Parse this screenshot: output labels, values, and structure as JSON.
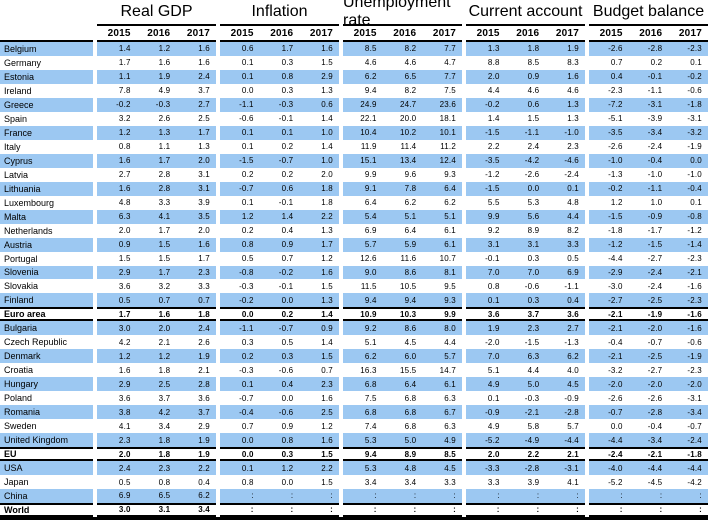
{
  "colors": {
    "row_highlight": "#9CC8F2",
    "rule": "#000000"
  },
  "table": {
    "groups": [
      {
        "label": "Real GDP"
      },
      {
        "label": "Inflation"
      },
      {
        "label": "Unemployment rate"
      },
      {
        "label": "Current account"
      },
      {
        "label": "Budget balance"
      }
    ],
    "years": [
      "2015",
      "2016",
      "2017"
    ],
    "rows": [
      {
        "name": "Belgium",
        "hl": true,
        "strong": false,
        "v": [
          [
            "1.4",
            "1.2",
            "1.6"
          ],
          [
            "0.6",
            "1.7",
            "1.6"
          ],
          [
            "8.5",
            "8.2",
            "7.7"
          ],
          [
            "1.3",
            "1.8",
            "1.9"
          ],
          [
            "-2.6",
            "-2.8",
            "-2.3"
          ]
        ]
      },
      {
        "name": "Germany",
        "hl": false,
        "strong": false,
        "v": [
          [
            "1.7",
            "1.6",
            "1.6"
          ],
          [
            "0.1",
            "0.3",
            "1.5"
          ],
          [
            "4.6",
            "4.6",
            "4.7"
          ],
          [
            "8.8",
            "8.5",
            "8.3"
          ],
          [
            "0.7",
            "0.2",
            "0.1"
          ]
        ]
      },
      {
        "name": "Estonia",
        "hl": true,
        "strong": false,
        "v": [
          [
            "1.1",
            "1.9",
            "2.4"
          ],
          [
            "0.1",
            "0.8",
            "2.9"
          ],
          [
            "6.2",
            "6.5",
            "7.7"
          ],
          [
            "2.0",
            "0.9",
            "1.6"
          ],
          [
            "0.4",
            "-0.1",
            "-0.2"
          ]
        ]
      },
      {
        "name": "Ireland",
        "hl": false,
        "strong": false,
        "v": [
          [
            "7.8",
            "4.9",
            "3.7"
          ],
          [
            "0.0",
            "0.3",
            "1.3"
          ],
          [
            "9.4",
            "8.2",
            "7.5"
          ],
          [
            "4.4",
            "4.6",
            "4.6"
          ],
          [
            "-2.3",
            "-1.1",
            "-0.6"
          ]
        ]
      },
      {
        "name": "Greece",
        "hl": true,
        "strong": false,
        "v": [
          [
            "-0.2",
            "-0.3",
            "2.7"
          ],
          [
            "-1.1",
            "-0.3",
            "0.6"
          ],
          [
            "24.9",
            "24.7",
            "23.6"
          ],
          [
            "-0.2",
            "0.6",
            "1.3"
          ],
          [
            "-7.2",
            "-3.1",
            "-1.8"
          ]
        ]
      },
      {
        "name": "Spain",
        "hl": false,
        "strong": false,
        "v": [
          [
            "3.2",
            "2.6",
            "2.5"
          ],
          [
            "-0.6",
            "-0.1",
            "1.4"
          ],
          [
            "22.1",
            "20.0",
            "18.1"
          ],
          [
            "1.4",
            "1.5",
            "1.3"
          ],
          [
            "-5.1",
            "-3.9",
            "-3.1"
          ]
        ]
      },
      {
        "name": "France",
        "hl": true,
        "strong": false,
        "v": [
          [
            "1.2",
            "1.3",
            "1.7"
          ],
          [
            "0.1",
            "0.1",
            "1.0"
          ],
          [
            "10.4",
            "10.2",
            "10.1"
          ],
          [
            "-1.5",
            "-1.1",
            "-1.0"
          ],
          [
            "-3.5",
            "-3.4",
            "-3.2"
          ]
        ]
      },
      {
        "name": "Italy",
        "hl": false,
        "strong": false,
        "v": [
          [
            "0.8",
            "1.1",
            "1.3"
          ],
          [
            "0.1",
            "0.2",
            "1.4"
          ],
          [
            "11.9",
            "11.4",
            "11.2"
          ],
          [
            "2.2",
            "2.4",
            "2.3"
          ],
          [
            "-2.6",
            "-2.4",
            "-1.9"
          ]
        ]
      },
      {
        "name": "Cyprus",
        "hl": true,
        "strong": false,
        "v": [
          [
            "1.6",
            "1.7",
            "2.0"
          ],
          [
            "-1.5",
            "-0.7",
            "1.0"
          ],
          [
            "15.1",
            "13.4",
            "12.4"
          ],
          [
            "-3.5",
            "-4.2",
            "-4.6"
          ],
          [
            "-1.0",
            "-0.4",
            "0.0"
          ]
        ]
      },
      {
        "name": "Latvia",
        "hl": false,
        "strong": false,
        "v": [
          [
            "2.7",
            "2.8",
            "3.1"
          ],
          [
            "0.2",
            "0.2",
            "2.0"
          ],
          [
            "9.9",
            "9.6",
            "9.3"
          ],
          [
            "-1.2",
            "-2.6",
            "-2.4"
          ],
          [
            "-1.3",
            "-1.0",
            "-1.0"
          ]
        ]
      },
      {
        "name": "Lithuania",
        "hl": true,
        "strong": false,
        "v": [
          [
            "1.6",
            "2.8",
            "3.1"
          ],
          [
            "-0.7",
            "0.6",
            "1.8"
          ],
          [
            "9.1",
            "7.8",
            "6.4"
          ],
          [
            "-1.5",
            "0.0",
            "0.1"
          ],
          [
            "-0.2",
            "-1.1",
            "-0.4"
          ]
        ]
      },
      {
        "name": "Luxembourg",
        "hl": false,
        "strong": false,
        "v": [
          [
            "4.8",
            "3.3",
            "3.9"
          ],
          [
            "0.1",
            "-0.1",
            "1.8"
          ],
          [
            "6.4",
            "6.2",
            "6.2"
          ],
          [
            "5.5",
            "5.3",
            "4.8"
          ],
          [
            "1.2",
            "1.0",
            "0.1"
          ]
        ]
      },
      {
        "name": "Malta",
        "hl": true,
        "strong": false,
        "v": [
          [
            "6.3",
            "4.1",
            "3.5"
          ],
          [
            "1.2",
            "1.4",
            "2.2"
          ],
          [
            "5.4",
            "5.1",
            "5.1"
          ],
          [
            "9.9",
            "5.6",
            "4.4"
          ],
          [
            "-1.5",
            "-0.9",
            "-0.8"
          ]
        ]
      },
      {
        "name": "Netherlands",
        "hl": false,
        "strong": false,
        "v": [
          [
            "2.0",
            "1.7",
            "2.0"
          ],
          [
            "0.2",
            "0.4",
            "1.3"
          ],
          [
            "6.9",
            "6.4",
            "6.1"
          ],
          [
            "9.2",
            "8.9",
            "8.2"
          ],
          [
            "-1.8",
            "-1.7",
            "-1.2"
          ]
        ]
      },
      {
        "name": "Austria",
        "hl": true,
        "strong": false,
        "v": [
          [
            "0.9",
            "1.5",
            "1.6"
          ],
          [
            "0.8",
            "0.9",
            "1.7"
          ],
          [
            "5.7",
            "5.9",
            "6.1"
          ],
          [
            "3.1",
            "3.1",
            "3.3"
          ],
          [
            "-1.2",
            "-1.5",
            "-1.4"
          ]
        ]
      },
      {
        "name": "Portugal",
        "hl": false,
        "strong": false,
        "v": [
          [
            "1.5",
            "1.5",
            "1.7"
          ],
          [
            "0.5",
            "0.7",
            "1.2"
          ],
          [
            "12.6",
            "11.6",
            "10.7"
          ],
          [
            "-0.1",
            "0.3",
            "0.5"
          ],
          [
            "-4.4",
            "-2.7",
            "-2.3"
          ]
        ]
      },
      {
        "name": "Slovenia",
        "hl": true,
        "strong": false,
        "v": [
          [
            "2.9",
            "1.7",
            "2.3"
          ],
          [
            "-0.8",
            "-0.2",
            "1.6"
          ],
          [
            "9.0",
            "8.6",
            "8.1"
          ],
          [
            "7.0",
            "7.0",
            "6.9"
          ],
          [
            "-2.9",
            "-2.4",
            "-2.1"
          ]
        ]
      },
      {
        "name": "Slovakia",
        "hl": false,
        "strong": false,
        "v": [
          [
            "3.6",
            "3.2",
            "3.3"
          ],
          [
            "-0.3",
            "-0.1",
            "1.5"
          ],
          [
            "11.5",
            "10.5",
            "9.5"
          ],
          [
            "0.8",
            "-0.6",
            "-1.1"
          ],
          [
            "-3.0",
            "-2.4",
            "-1.6"
          ]
        ]
      },
      {
        "name": "Finland",
        "hl": true,
        "strong": false,
        "v": [
          [
            "0.5",
            "0.7",
            "0.7"
          ],
          [
            "-0.2",
            "0.0",
            "1.3"
          ],
          [
            "9.4",
            "9.4",
            "9.3"
          ],
          [
            "0.1",
            "0.3",
            "0.4"
          ],
          [
            "-2.7",
            "-2.5",
            "-2.3"
          ]
        ]
      },
      {
        "name": "Euro area",
        "hl": false,
        "strong": true,
        "v": [
          [
            "1.7",
            "1.6",
            "1.8"
          ],
          [
            "0.0",
            "0.2",
            "1.4"
          ],
          [
            "10.9",
            "10.3",
            "9.9"
          ],
          [
            "3.6",
            "3.7",
            "3.6"
          ],
          [
            "-2.1",
            "-1.9",
            "-1.6"
          ]
        ]
      },
      {
        "name": "Bulgaria",
        "hl": true,
        "strong": false,
        "v": [
          [
            "3.0",
            "2.0",
            "2.4"
          ],
          [
            "-1.1",
            "-0.7",
            "0.9"
          ],
          [
            "9.2",
            "8.6",
            "8.0"
          ],
          [
            "1.9",
            "2.3",
            "2.7"
          ],
          [
            "-2.1",
            "-2.0",
            "-1.6"
          ]
        ]
      },
      {
        "name": "Czech Republic",
        "hl": false,
        "strong": false,
        "v": [
          [
            "4.2",
            "2.1",
            "2.6"
          ],
          [
            "0.3",
            "0.5",
            "1.4"
          ],
          [
            "5.1",
            "4.5",
            "4.4"
          ],
          [
            "-2.0",
            "-1.5",
            "-1.3"
          ],
          [
            "-0.4",
            "-0.7",
            "-0.6"
          ]
        ]
      },
      {
        "name": "Denmark",
        "hl": true,
        "strong": false,
        "v": [
          [
            "1.2",
            "1.2",
            "1.9"
          ],
          [
            "0.2",
            "0.3",
            "1.5"
          ],
          [
            "6.2",
            "6.0",
            "5.7"
          ],
          [
            "7.0",
            "6.3",
            "6.2"
          ],
          [
            "-2.1",
            "-2.5",
            "-1.9"
          ]
        ]
      },
      {
        "name": "Croatia",
        "hl": false,
        "strong": false,
        "v": [
          [
            "1.6",
            "1.8",
            "2.1"
          ],
          [
            "-0.3",
            "-0.6",
            "0.7"
          ],
          [
            "16.3",
            "15.5",
            "14.7"
          ],
          [
            "5.1",
            "4.4",
            "4.0"
          ],
          [
            "-3.2",
            "-2.7",
            "-2.3"
          ]
        ]
      },
      {
        "name": "Hungary",
        "hl": true,
        "strong": false,
        "v": [
          [
            "2.9",
            "2.5",
            "2.8"
          ],
          [
            "0.1",
            "0.4",
            "2.3"
          ],
          [
            "6.8",
            "6.4",
            "6.1"
          ],
          [
            "4.9",
            "5.0",
            "4.5"
          ],
          [
            "-2.0",
            "-2.0",
            "-2.0"
          ]
        ]
      },
      {
        "name": "Poland",
        "hl": false,
        "strong": false,
        "v": [
          [
            "3.6",
            "3.7",
            "3.6"
          ],
          [
            "-0.7",
            "0.0",
            "1.6"
          ],
          [
            "7.5",
            "6.8",
            "6.3"
          ],
          [
            "0.1",
            "-0.3",
            "-0.9"
          ],
          [
            "-2.6",
            "-2.6",
            "-3.1"
          ]
        ]
      },
      {
        "name": "Romania",
        "hl": true,
        "strong": false,
        "v": [
          [
            "3.8",
            "4.2",
            "3.7"
          ],
          [
            "-0.4",
            "-0.6",
            "2.5"
          ],
          [
            "6.8",
            "6.8",
            "6.7"
          ],
          [
            "-0.9",
            "-2.1",
            "-2.8"
          ],
          [
            "-0.7",
            "-2.8",
            "-3.4"
          ]
        ]
      },
      {
        "name": "Sweden",
        "hl": false,
        "strong": false,
        "v": [
          [
            "4.1",
            "3.4",
            "2.9"
          ],
          [
            "0.7",
            "0.9",
            "1.2"
          ],
          [
            "7.4",
            "6.8",
            "6.3"
          ],
          [
            "4.9",
            "5.8",
            "5.7"
          ],
          [
            "0.0",
            "-0.4",
            "-0.7"
          ]
        ]
      },
      {
        "name": "United Kingdom",
        "hl": true,
        "strong": false,
        "v": [
          [
            "2.3",
            "1.8",
            "1.9"
          ],
          [
            "0.0",
            "0.8",
            "1.6"
          ],
          [
            "5.3",
            "5.0",
            "4.9"
          ],
          [
            "-5.2",
            "-4.9",
            "-4.4"
          ],
          [
            "-4.4",
            "-3.4",
            "-2.4"
          ]
        ]
      },
      {
        "name": "EU",
        "hl": false,
        "strong": true,
        "v": [
          [
            "2.0",
            "1.8",
            "1.9"
          ],
          [
            "0.0",
            "0.3",
            "1.5"
          ],
          [
            "9.4",
            "8.9",
            "8.5"
          ],
          [
            "2.0",
            "2.2",
            "2.1"
          ],
          [
            "-2.4",
            "-2.1",
            "-1.8"
          ]
        ]
      },
      {
        "name": "USA",
        "hl": true,
        "strong": false,
        "v": [
          [
            "2.4",
            "2.3",
            "2.2"
          ],
          [
            "0.1",
            "1.2",
            "2.2"
          ],
          [
            "5.3",
            "4.8",
            "4.5"
          ],
          [
            "-3.3",
            "-2.8",
            "-3.1"
          ],
          [
            "-4.0",
            "-4.4",
            "-4.4"
          ]
        ]
      },
      {
        "name": "Japan",
        "hl": false,
        "strong": false,
        "v": [
          [
            "0.5",
            "0.8",
            "0.4"
          ],
          [
            "0.8",
            "0.0",
            "1.5"
          ],
          [
            "3.4",
            "3.4",
            "3.3"
          ],
          [
            "3.3",
            "3.9",
            "4.1"
          ],
          [
            "-5.2",
            "-4.5",
            "-4.2"
          ]
        ]
      },
      {
        "name": "China",
        "hl": true,
        "strong": false,
        "v": [
          [
            "6.9",
            "6.5",
            "6.2"
          ],
          [
            ":",
            ":",
            ":"
          ],
          [
            ":",
            ":",
            ":"
          ],
          [
            ":",
            ":",
            ":"
          ],
          [
            ":",
            ":",
            ":"
          ]
        ]
      },
      {
        "name": "World",
        "hl": false,
        "strong": true,
        "v": [
          [
            "3.0",
            "3.1",
            "3.4"
          ],
          [
            ":",
            ":",
            ":"
          ],
          [
            ":",
            ":",
            ":"
          ],
          [
            ":",
            ":",
            ":"
          ],
          [
            ":",
            ":",
            ":"
          ]
        ]
      }
    ]
  }
}
